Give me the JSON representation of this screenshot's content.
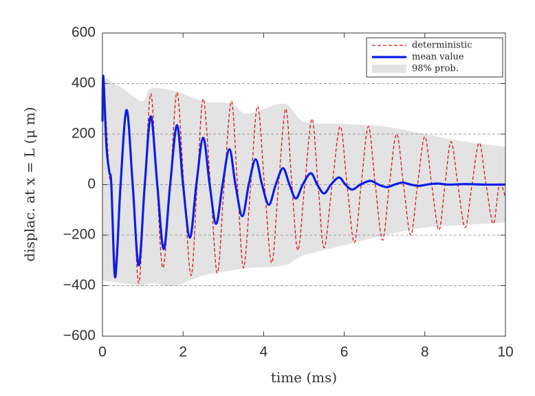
{
  "chart_data": {
    "type": "line",
    "xlabel": "time  (ms)",
    "ylabel": "displac. at x = L  (μ m)",
    "xlim": [
      0,
      10
    ],
    "xticks": [
      0,
      2,
      4,
      6,
      8,
      10
    ],
    "ylim": [
      -600,
      600
    ],
    "yticks": [
      {
        "value": -600,
        "label": "−600"
      },
      {
        "value": -400,
        "label": "−400"
      },
      {
        "value": -200,
        "label": "−200"
      },
      0,
      200,
      400,
      600
    ],
    "grid": true,
    "legend": "upper right",
    "band": {
      "name": "98% prob.",
      "color": "#e3e3e3",
      "x": [
        0,
        0.5,
        1,
        1.2,
        1.8,
        2.5,
        3.2,
        3.6,
        4.5,
        5,
        6,
        7,
        8,
        9,
        10
      ],
      "upper": [
        430,
        380,
        330,
        380,
        370,
        330,
        320,
        280,
        320,
        250,
        240,
        230,
        200,
        170,
        150
      ],
      "lower": [
        -380,
        -390,
        -400,
        -390,
        -400,
        -360,
        -340,
        -330,
        -320,
        -280,
        -240,
        -200,
        -170,
        -160,
        -150
      ]
    },
    "series": [
      {
        "name": "deterministic",
        "color": "#dd1111",
        "dashed": true,
        "x": [
          0,
          0.02,
          0.17,
          0.22,
          0.3,
          0.45,
          0.6,
          0.75,
          0.9,
          1.05,
          1.2,
          1.35,
          1.5,
          1.68,
          1.85,
          2.02,
          2.2,
          2.35,
          2.5,
          2.68,
          2.85,
          3.02,
          3.2,
          3.35,
          3.5,
          3.68,
          3.85,
          4.02,
          4.2,
          4.37,
          4.55,
          4.7,
          4.85,
          5.02,
          5.2,
          5.35,
          5.5,
          5.7,
          5.9,
          6.07,
          6.25,
          6.42,
          6.6,
          6.77,
          6.95,
          7.12,
          7.3,
          7.47,
          7.65,
          7.82,
          8.0,
          8.17,
          8.35,
          8.5,
          8.65,
          8.82,
          9.0,
          9.17,
          9.35,
          9.52,
          9.7,
          9.85,
          10
        ],
        "values": [
          250,
          420,
          40,
          0,
          -360,
          0,
          300,
          0,
          -390,
          0,
          360,
          0,
          -330,
          0,
          365,
          0,
          -360,
          0,
          340,
          0,
          -350,
          0,
          330,
          0,
          -330,
          0,
          310,
          0,
          -310,
          0,
          300,
          0,
          -260,
          0,
          260,
          0,
          -250,
          0,
          230,
          0,
          -230,
          0,
          230,
          0,
          -220,
          0,
          200,
          0,
          -200,
          0,
          190,
          0,
          -180,
          0,
          170,
          0,
          -170,
          0,
          165,
          0,
          -155,
          0,
          -50
        ]
      },
      {
        "name": "mean value",
        "color": "#0a1ee8",
        "dashed": false,
        "x": [
          0,
          0.02,
          0.1,
          0.17,
          0.22,
          0.3,
          0.36,
          0.45,
          0.6,
          0.75,
          0.9,
          1.05,
          1.2,
          1.36,
          1.52,
          1.68,
          1.85,
          2.0,
          2.17,
          2.33,
          2.5,
          2.66,
          2.82,
          2.98,
          3.15,
          3.3,
          3.47,
          3.63,
          3.8,
          3.96,
          4.13,
          4.3,
          4.48,
          4.64,
          4.8,
          4.97,
          5.17,
          5.33,
          5.5,
          5.67,
          5.87,
          6.03,
          6.2,
          6.4,
          6.65,
          6.85,
          7.05,
          7.25,
          7.45,
          7.65,
          7.85,
          8.05,
          8.3,
          8.6,
          9,
          9.5,
          10
        ],
        "values": [
          250,
          430,
          150,
          50,
          0,
          -350,
          -280,
          0,
          295,
          0,
          -320,
          0,
          270,
          0,
          -255,
          0,
          235,
          0,
          -210,
          0,
          185,
          0,
          -155,
          0,
          140,
          0,
          -125,
          0,
          100,
          0,
          -80,
          0,
          65,
          0,
          -55,
          0,
          45,
          0,
          -35,
          0,
          28,
          0,
          -20,
          0,
          15,
          0,
          -10,
          0,
          8,
          0,
          -5,
          0,
          4,
          0,
          2,
          0,
          0
        ]
      }
    ]
  }
}
